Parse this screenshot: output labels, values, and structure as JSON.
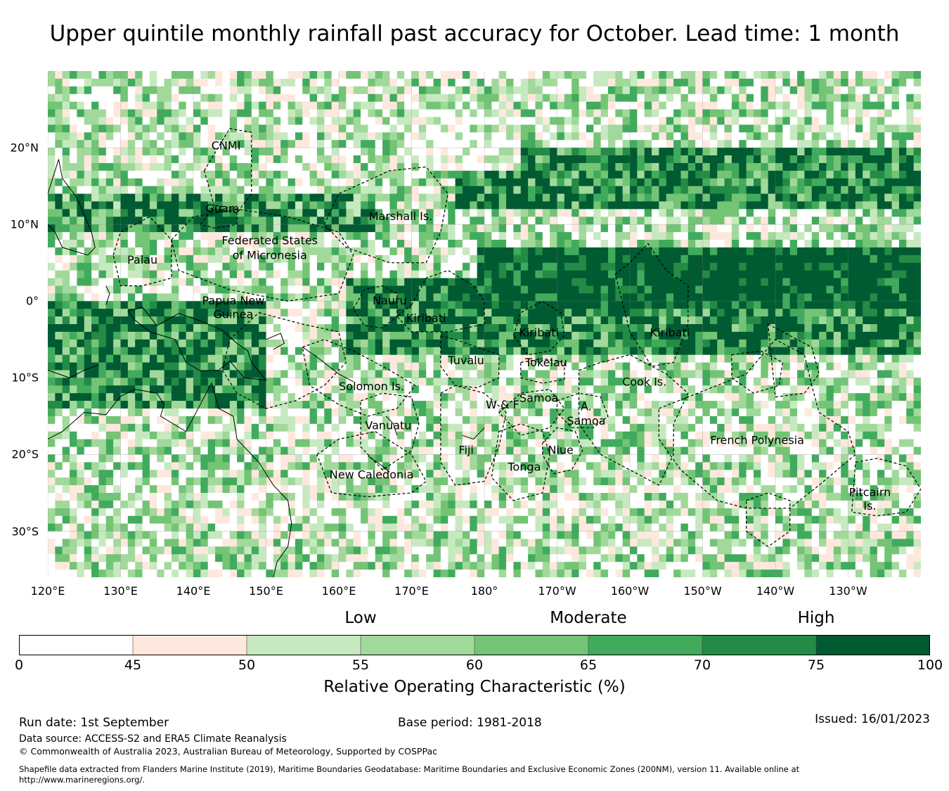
{
  "title": "Upper quintile monthly rainfall past accuracy for October. Lead time: 1 month",
  "map": {
    "lat_range": [
      -36,
      30
    ],
    "lon_range": [
      120,
      240
    ],
    "lat_ticks": [
      {
        "lat": 20,
        "label": "20°N"
      },
      {
        "lat": 10,
        "label": "10°N"
      },
      {
        "lat": 0,
        "label": "0°"
      },
      {
        "lat": -10,
        "label": "10°S"
      },
      {
        "lat": -20,
        "label": "20°S"
      },
      {
        "lat": -30,
        "label": "30°S"
      }
    ],
    "lon_ticks": [
      {
        "lon": 120,
        "label": "120°E"
      },
      {
        "lon": 130,
        "label": "130°E"
      },
      {
        "lon": 140,
        "label": "140°E"
      },
      {
        "lon": 150,
        "label": "150°E"
      },
      {
        "lon": 160,
        "label": "160°E"
      },
      {
        "lon": 170,
        "label": "170°E"
      },
      {
        "lon": 180,
        "label": "180°"
      },
      {
        "lon": 190,
        "label": "170°W"
      },
      {
        "lon": 200,
        "label": "160°W"
      },
      {
        "lon": 210,
        "label": "150°W"
      },
      {
        "lon": 220,
        "label": "140°W"
      },
      {
        "lon": 230,
        "label": "130°W"
      }
    ],
    "regions": [
      {
        "name": "CNMI",
        "lon": 144.5,
        "lat": 20.2
      },
      {
        "name": "Guam",
        "lon": 144.0,
        "lat": 12.0
      },
      {
        "name": "Marshall Is.",
        "lon": 168.5,
        "lat": 11.0
      },
      {
        "name": "Federated States",
        "lon": 150.5,
        "lat": 7.8
      },
      {
        "name": "of Micronesia",
        "lon": 150.5,
        "lat": 5.9
      },
      {
        "name": "Palau",
        "lon": 133.0,
        "lat": 5.3
      },
      {
        "name": "Papua New",
        "lon": 145.5,
        "lat": 0.0
      },
      {
        "name": "Guinea",
        "lon": 145.5,
        "lat": -1.8
      },
      {
        "name": "Nauru",
        "lon": 167.0,
        "lat": 0.0
      },
      {
        "name": "Kiribati",
        "lon": 172.0,
        "lat": -2.3
      },
      {
        "name": "Kiribati",
        "lon": 187.5,
        "lat": -4.2
      },
      {
        "name": "Kiribati",
        "lon": 205.5,
        "lat": -4.2
      },
      {
        "name": "Tuvalu",
        "lon": 177.5,
        "lat": -7.8
      },
      {
        "name": "Tokelau",
        "lon": 188.5,
        "lat": -8.1
      },
      {
        "name": "Solomon Is.",
        "lon": 164.5,
        "lat": -11.2
      },
      {
        "name": "Cook Is.",
        "lon": 202.0,
        "lat": -10.6
      },
      {
        "name": "Samoa",
        "lon": 187.5,
        "lat": -12.7
      },
      {
        "name": "W & F",
        "lon": 182.5,
        "lat": -13.6
      },
      {
        "name": "A.",
        "lon": 194.0,
        "lat": -13.8
      },
      {
        "name": "Samoa",
        "lon": 194.0,
        "lat": -15.7
      },
      {
        "name": "Vanuatu",
        "lon": 166.8,
        "lat": -16.3
      },
      {
        "name": "Fiji",
        "lon": 177.5,
        "lat": -19.5
      },
      {
        "name": "Niue",
        "lon": 190.5,
        "lat": -19.5
      },
      {
        "name": "French Polynesia",
        "lon": 217.5,
        "lat": -18.2
      },
      {
        "name": "Tonga",
        "lon": 185.5,
        "lat": -21.7
      },
      {
        "name": "New Caledonia",
        "lon": 164.5,
        "lat": -22.7
      },
      {
        "name": "Pitcairn",
        "lon": 233.0,
        "lat": -25.0
      },
      {
        "name": "Is.",
        "lon": 233.0,
        "lat": -26.8
      }
    ],
    "colors": {
      "water_low": "#ffffff",
      "coast": "#000000",
      "boundary": "#000000"
    }
  },
  "legend": {
    "category_labels": [
      {
        "label": "Low",
        "value": 55
      },
      {
        "label": "Moderate",
        "value": 65
      },
      {
        "label": "High",
        "value": 75
      }
    ],
    "bins": [
      {
        "from": 0,
        "to": 45,
        "color": "#ffffff"
      },
      {
        "from": 45,
        "to": 50,
        "color": "#fee8dd"
      },
      {
        "from": 50,
        "to": 55,
        "color": "#c7e9c0"
      },
      {
        "from": 55,
        "to": 60,
        "color": "#a1d99b"
      },
      {
        "from": 60,
        "to": 65,
        "color": "#74c476"
      },
      {
        "from": 65,
        "to": 70,
        "color": "#41ab5d"
      },
      {
        "from": 70,
        "to": 75,
        "color": "#238b45"
      },
      {
        "from": 75,
        "to": 100,
        "color": "#005a32"
      }
    ],
    "ticks": [
      "0",
      "45",
      "50",
      "55",
      "60",
      "65",
      "70",
      "75",
      "100"
    ],
    "title": "Relative Operating Characteristic (%)"
  },
  "footer": {
    "run_date": "Run date: 1st September",
    "base_period": "Base period: 1981-2018",
    "issued": "Issued: 16/01/2023",
    "data_source": "Data source: ACCESS-S2 and ERA5 Climate Reanalysis",
    "copyright": "© Commonwealth of Australia 2023, Australian Bureau of Meteorology, Supported by COSPPac",
    "shapefile_line1": "Shapefile data extracted from Flanders Marine Institute (2019), Maritime Boundaries Geodatabase: Maritime Boundaries and Exclusive Economic Zones (200NM), version 11. Available online at",
    "shapefile_line2": "http://www.marineregions.org/."
  }
}
